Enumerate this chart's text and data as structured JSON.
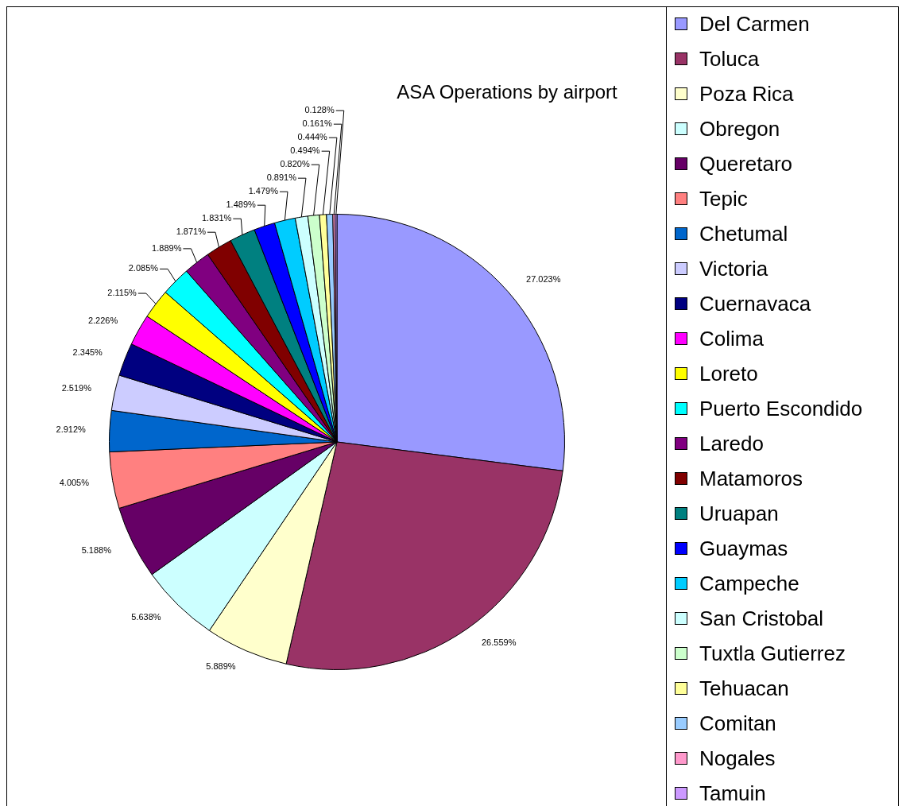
{
  "chart_data": {
    "type": "pie",
    "title": "ASA Operations by airport",
    "categories": [
      "Del Carmen",
      "Toluca",
      "Poza Rica",
      "Obregon",
      "Queretaro",
      "Tepic",
      "Chetumal",
      "Victoria",
      "Cuernavaca",
      "Colima",
      "Loreto",
      "Puerto Escondido",
      "Laredo",
      "Matamoros",
      "Uruapan",
      "Guaymas",
      "Campeche",
      "San Cristobal",
      "Tuxtla Gutierrez",
      "Tehuacan",
      "Comitan",
      "Nogales",
      "Tamuin"
    ],
    "values": [
      27.023,
      26.559,
      5.889,
      5.638,
      5.188,
      4.005,
      2.912,
      2.519,
      2.345,
      2.226,
      2.115,
      2.085,
      1.889,
      1.871,
      1.831,
      1.489,
      1.479,
      0.891,
      0.82,
      0.494,
      0.444,
      0.161,
      0.128
    ],
    "value_labels": [
      "27.023%",
      "26.559%",
      "5.889%",
      "5.638%",
      "5.188%",
      "4.005%",
      "2.912%",
      "2.519%",
      "2.345%",
      "2.226%",
      "2.115%",
      "2.085%",
      "1.889%",
      "1.871%",
      "1.831%",
      "1.489%",
      "1.479%",
      "0.891%",
      "0.820%",
      "0.494%",
      "0.444%",
      "0.161%",
      "0.128%"
    ],
    "colors": [
      "#9999ff",
      "#993366",
      "#ffffcc",
      "#ccffff",
      "#660066",
      "#ff8080",
      "#0066cc",
      "#ccccff",
      "#000080",
      "#ff00ff",
      "#ffff00",
      "#00ffff",
      "#800080",
      "#800000",
      "#008080",
      "#0000ff",
      "#00ccff",
      "#ccffff",
      "#ccffcc",
      "#ffff99",
      "#99ccff",
      "#ff99cc",
      "#cc99ff"
    ],
    "legend": "right"
  }
}
